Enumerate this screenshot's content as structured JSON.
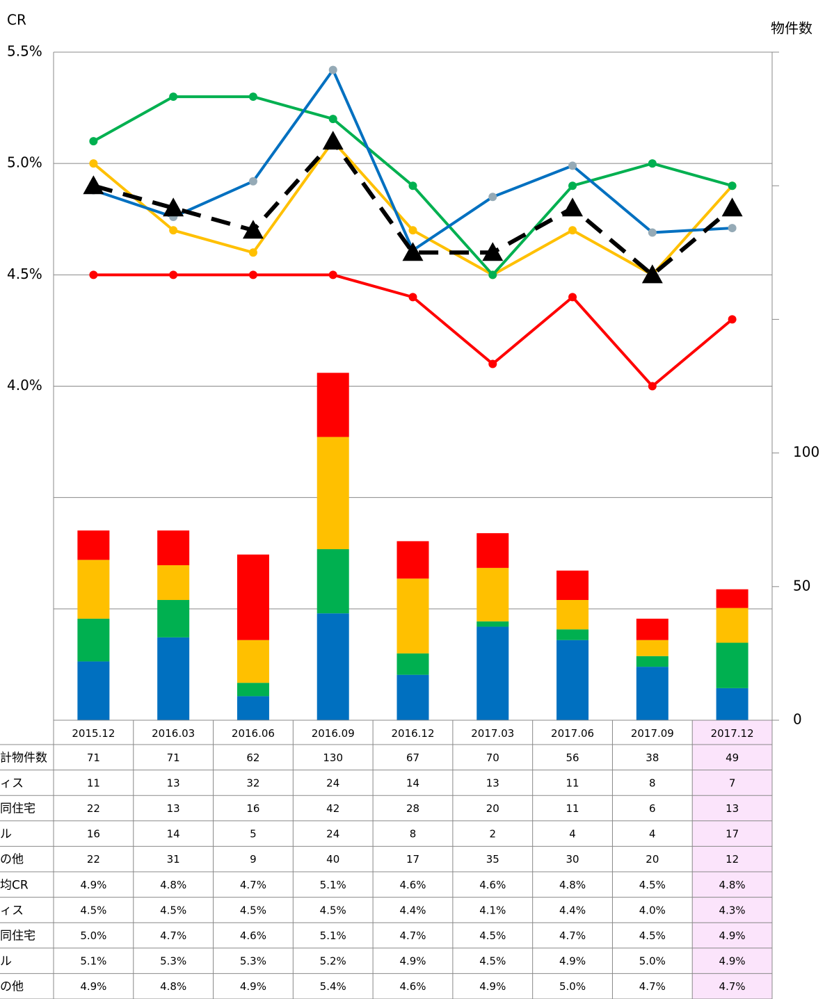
{
  "chart_data": {
    "type": "combo",
    "title": "CR",
    "y2_title": "物件数",
    "categories": [
      "2015.12",
      "2016.03",
      "2016.06",
      "2016.09",
      "2016.12",
      "2017.03",
      "2017.06",
      "2017.09",
      "2017.12"
    ],
    "ylim": [
      2.5,
      5.5
    ],
    "yticks": [
      {
        "value": 5.5,
        "label": "5.5%"
      },
      {
        "value": 5.0,
        "label": "5.0%"
      },
      {
        "value": 4.5,
        "label": "4.5%"
      },
      {
        "value": 4.0,
        "label": "4.0%"
      }
    ],
    "y_unlabeled_grid": [
      3.5,
      3.0
    ],
    "y2lim": [
      0,
      250
    ],
    "y2ticks": [
      0,
      50,
      100
    ],
    "y2_unlabeled_ticks": [
      150,
      200,
      250
    ],
    "grid": true,
    "highlight_color": "#fbe4fb",
    "total": {
      "name": "計物件数",
      "values": [
        71,
        71,
        62,
        130,
        67,
        70,
        56,
        38,
        49
      ]
    },
    "bars": [
      {
        "name": "ィス",
        "color": "#ff0000",
        "axis": "y2",
        "values": [
          11,
          13,
          32,
          24,
          14,
          13,
          11,
          8,
          7
        ]
      },
      {
        "name": "同住宅",
        "color": "#ffc000",
        "axis": "y2",
        "values": [
          22,
          13,
          16,
          42,
          28,
          20,
          11,
          6,
          13
        ]
      },
      {
        "name": "ル",
        "color": "#00b050",
        "axis": "y2",
        "values": [
          16,
          14,
          5,
          24,
          8,
          2,
          4,
          4,
          17
        ]
      },
      {
        "name": "の他",
        "color": "#0070c0",
        "axis": "y2",
        "values": [
          22,
          31,
          9,
          40,
          17,
          35,
          30,
          20,
          12
        ]
      }
    ],
    "lines": [
      {
        "name": "均CR",
        "color": "#000000",
        "marker": "triangle",
        "marker_color": "#000000",
        "dashed": true,
        "values": [
          4.9,
          4.8,
          4.7,
          5.1,
          4.6,
          4.6,
          4.8,
          4.5,
          4.8
        ],
        "value_labels": [
          "4.9%",
          "4.8%",
          "4.7%",
          "5.1%",
          "4.6%",
          "4.6%",
          "4.8%",
          "4.5%",
          "4.8%"
        ]
      },
      {
        "name": "ィス",
        "color": "#ff0000",
        "marker": "circle",
        "marker_color": "#ff0000",
        "values": [
          4.5,
          4.5,
          4.5,
          4.5,
          4.4,
          4.1,
          4.4,
          4.0,
          4.3
        ],
        "value_labels": [
          "4.5%",
          "4.5%",
          "4.5%",
          "4.5%",
          "4.4%",
          "4.1%",
          "4.4%",
          "4.0%",
          "4.3%"
        ]
      },
      {
        "name": "同住宅",
        "color": "#ffc000",
        "marker": "circle",
        "marker_color": "#ffc000",
        "values": [
          5.0,
          4.7,
          4.6,
          5.1,
          4.7,
          4.5,
          4.7,
          4.5,
          4.9
        ],
        "value_labels": [
          "5.0%",
          "4.7%",
          "4.6%",
          "5.1%",
          "4.7%",
          "4.5%",
          "4.7%",
          "4.5%",
          "4.9%"
        ]
      },
      {
        "name": "ル",
        "color": "#00b050",
        "marker": "circle",
        "marker_color": "#00b050",
        "values": [
          5.1,
          5.3,
          5.3,
          5.2,
          4.9,
          4.5,
          4.9,
          5.0,
          4.9
        ],
        "value_labels": [
          "5.1%",
          "5.3%",
          "5.3%",
          "5.2%",
          "4.9%",
          "4.5%",
          "4.9%",
          "5.0%",
          "4.9%"
        ]
      },
      {
        "name": "の他",
        "color": "#0070c0",
        "marker": "circle",
        "marker_color": "#95aab6",
        "values": [
          4.88,
          4.76,
          4.92,
          5.42,
          4.61,
          4.85,
          4.99,
          4.69,
          4.71
        ],
        "value_labels": [
          "4.9%",
          "4.8%",
          "4.9%",
          "5.4%",
          "4.6%",
          "4.9%",
          "5.0%",
          "4.7%",
          "4.7%"
        ]
      }
    ]
  }
}
